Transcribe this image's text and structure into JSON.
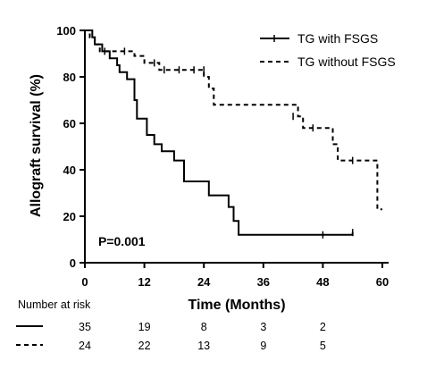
{
  "chart_data": {
    "type": "line",
    "title": "",
    "xlabel": "Time (Months)",
    "ylabel": "Allograft survival (%)",
    "xlim": [
      0,
      60
    ],
    "ylim": [
      0,
      100
    ],
    "xticks": [
      0,
      12,
      24,
      36,
      48,
      60
    ],
    "yticks": [
      0,
      20,
      40,
      60,
      80,
      100
    ],
    "legend_position": "top-right",
    "annotation": "P=0.001",
    "series": [
      {
        "name": "TG with FSGS",
        "line_style": "solid",
        "color": "#000000",
        "steps": [
          [
            0,
            100
          ],
          [
            1.5,
            97
          ],
          [
            2,
            94
          ],
          [
            3.5,
            91
          ],
          [
            5,
            88
          ],
          [
            6.5,
            85
          ],
          [
            7,
            82
          ],
          [
            8.5,
            79
          ],
          [
            10,
            70
          ],
          [
            10.5,
            62
          ],
          [
            12.5,
            55
          ],
          [
            14,
            51
          ],
          [
            15.5,
            48
          ],
          [
            18,
            44
          ],
          [
            20,
            35
          ],
          [
            25,
            29
          ],
          [
            29,
            24
          ],
          [
            30,
            18
          ],
          [
            31,
            12
          ],
          [
            54,
            13
          ]
        ],
        "end": 54,
        "censors": [
          [
            48,
            12
          ],
          [
            54,
            13
          ]
        ]
      },
      {
        "name": "TG without FSGS",
        "line_style": "dashed",
        "color": "#000000",
        "steps": [
          [
            0,
            100
          ],
          [
            1,
            97
          ],
          [
            2,
            94
          ],
          [
            3,
            91
          ],
          [
            10,
            89
          ],
          [
            12,
            86
          ],
          [
            15,
            83
          ],
          [
            24,
            80
          ],
          [
            25,
            75
          ],
          [
            26,
            68
          ],
          [
            43,
            63
          ],
          [
            44,
            58
          ],
          [
            50,
            51
          ],
          [
            51,
            44
          ],
          [
            59,
            23
          ],
          [
            60,
            23
          ]
        ],
        "end": 60,
        "censors": [
          [
            4,
            91
          ],
          [
            8,
            91
          ],
          [
            14,
            86
          ],
          [
            16,
            83
          ],
          [
            19,
            83
          ],
          [
            22,
            83
          ],
          [
            24,
            83
          ],
          [
            42,
            63
          ],
          [
            46,
            58
          ],
          [
            54,
            44
          ]
        ]
      }
    ],
    "risk_table": {
      "title": "Number at risk",
      "times": [
        0,
        12,
        24,
        36,
        48
      ],
      "rows": [
        {
          "line_style": "solid",
          "counts": [
            35,
            19,
            8,
            3,
            2
          ]
        },
        {
          "line_style": "dashed",
          "counts": [
            24,
            22,
            13,
            9,
            5
          ]
        }
      ]
    }
  }
}
